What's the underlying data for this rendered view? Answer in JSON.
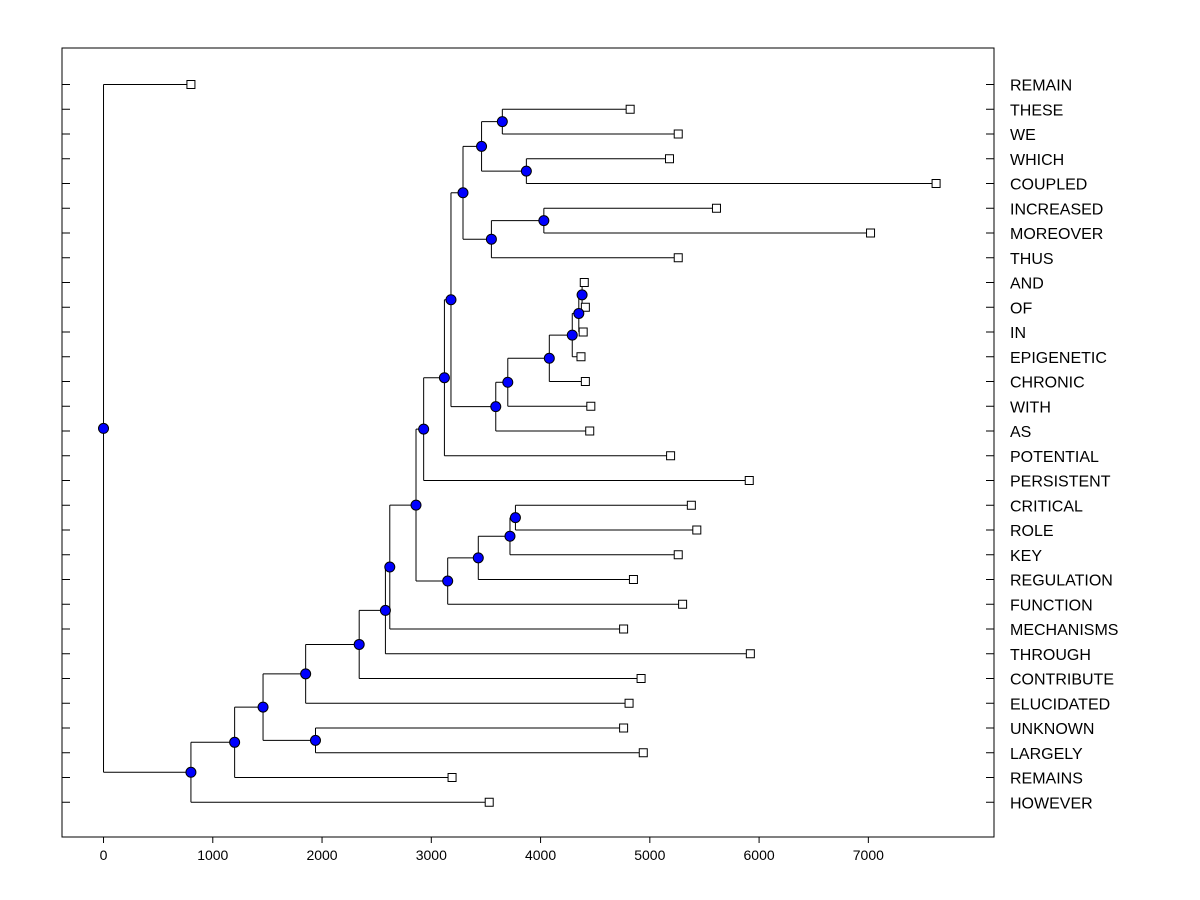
{
  "chart_data": {
    "type": "dendrogram",
    "title": "",
    "xlabel": "",
    "ylabel": "",
    "xlim": [
      -380,
      8150
    ],
    "x_ticks": [
      0,
      1000,
      2000,
      3000,
      4000,
      5000,
      6000,
      7000
    ],
    "grid": false,
    "leaves": [
      {
        "label": "REMAIN",
        "x": 800
      },
      {
        "label": "THESE",
        "x": 4820
      },
      {
        "label": "WE",
        "x": 5260
      },
      {
        "label": "WHICH",
        "x": 5180
      },
      {
        "label": "COUPLED",
        "x": 7620
      },
      {
        "label": "INCREASED",
        "x": 5610
      },
      {
        "label": "MOREOVER",
        "x": 7020
      },
      {
        "label": "THUS",
        "x": 5260
      },
      {
        "label": "AND",
        "x": 4400
      },
      {
        "label": "OF",
        "x": 4410
      },
      {
        "label": "IN",
        "x": 4390
      },
      {
        "label": "EPIGENETIC",
        "x": 4370
      },
      {
        "label": "CHRONIC",
        "x": 4410
      },
      {
        "label": "WITH",
        "x": 4460
      },
      {
        "label": "AS",
        "x": 4450
      },
      {
        "label": "POTENTIAL",
        "x": 5190
      },
      {
        "label": "PERSISTENT",
        "x": 5910
      },
      {
        "label": "CRITICAL",
        "x": 5380
      },
      {
        "label": "ROLE",
        "x": 5430
      },
      {
        "label": "KEY",
        "x": 5260
      },
      {
        "label": "REGULATION",
        "x": 4850
      },
      {
        "label": "FUNCTION",
        "x": 5300
      },
      {
        "label": "MECHANISMS",
        "x": 4760
      },
      {
        "label": "THROUGH",
        "x": 5920
      },
      {
        "label": "CONTRIBUTE",
        "x": 4920
      },
      {
        "label": "ELUCIDATED",
        "x": 4810
      },
      {
        "label": "UNKNOWN",
        "x": 4760
      },
      {
        "label": "LARGELY",
        "x": 4940
      },
      {
        "label": "REMAINS",
        "x": 3190
      },
      {
        "label": "HOWEVER",
        "x": 3530
      }
    ],
    "nodes": [
      {
        "id": "n_and_of",
        "x": 4380,
        "children": [
          8,
          9
        ]
      },
      {
        "id": "n_in",
        "x": 4350,
        "children": [
          "n_and_of",
          10
        ]
      },
      {
        "id": "n_epi",
        "x": 4290,
        "children": [
          "n_in",
          11
        ]
      },
      {
        "id": "n_chr",
        "x": 4080,
        "children": [
          "n_epi",
          12
        ]
      },
      {
        "id": "n_with",
        "x": 3700,
        "children": [
          "n_chr",
          13
        ]
      },
      {
        "id": "n_as",
        "x": 3590,
        "children": [
          "n_with",
          14
        ]
      },
      {
        "id": "n_these_we",
        "x": 3650,
        "children": [
          1,
          2
        ]
      },
      {
        "id": "n_which_coupled",
        "x": 3870,
        "children": [
          3,
          4
        ]
      },
      {
        "id": "n_top4",
        "x": 3460,
        "children": [
          "n_these_we",
          "n_which_coupled"
        ]
      },
      {
        "id": "n_inc_more",
        "x": 4030,
        "children": [
          5,
          6
        ]
      },
      {
        "id": "n_thus",
        "x": 3550,
        "children": [
          "n_inc_more",
          7
        ]
      },
      {
        "id": "n_top7",
        "x": 3290,
        "children": [
          "n_top4",
          "n_thus"
        ]
      },
      {
        "id": "n_upper",
        "x": 3180,
        "children": [
          "n_top7",
          "n_as"
        ]
      },
      {
        "id": "n_potential",
        "x": 3120,
        "children": [
          "n_upper",
          15
        ]
      },
      {
        "id": "n_persistent",
        "x": 2930,
        "children": [
          "n_potential",
          16
        ]
      },
      {
        "id": "n_crit_role",
        "x": 3770,
        "children": [
          17,
          18
        ]
      },
      {
        "id": "n_key",
        "x": 3720,
        "children": [
          "n_crit_role",
          19
        ]
      },
      {
        "id": "n_regulation",
        "x": 3430,
        "children": [
          "n_key",
          20
        ]
      },
      {
        "id": "n_function",
        "x": 3150,
        "children": [
          "n_regulation",
          21
        ]
      },
      {
        "id": "n_mid",
        "x": 2860,
        "children": [
          "n_persistent",
          "n_function"
        ]
      },
      {
        "id": "n_mechanisms",
        "x": 2620,
        "children": [
          "n_mid",
          22
        ]
      },
      {
        "id": "n_through",
        "x": 2580,
        "children": [
          "n_mechanisms",
          23
        ]
      },
      {
        "id": "n_contribute",
        "x": 2340,
        "children": [
          "n_through",
          24
        ]
      },
      {
        "id": "n_elucidated",
        "x": 1850,
        "children": [
          "n_contribute",
          25
        ]
      },
      {
        "id": "n_unk_lar",
        "x": 1940,
        "children": [
          26,
          27
        ]
      },
      {
        "id": "n_big",
        "x": 1460,
        "children": [
          "n_elucidated",
          "n_unk_lar"
        ]
      },
      {
        "id": "n_remains",
        "x": 1200,
        "children": [
          "n_big",
          28
        ]
      },
      {
        "id": "n_however",
        "x": 800,
        "children": [
          "n_remains",
          29
        ]
      },
      {
        "id": "n_root",
        "x": 0,
        "children": [
          0,
          "n_however"
        ]
      }
    ],
    "colors": {
      "node_fill": "#0000ff",
      "leaf_fill": "#ffffff",
      "line": "#000000"
    }
  }
}
